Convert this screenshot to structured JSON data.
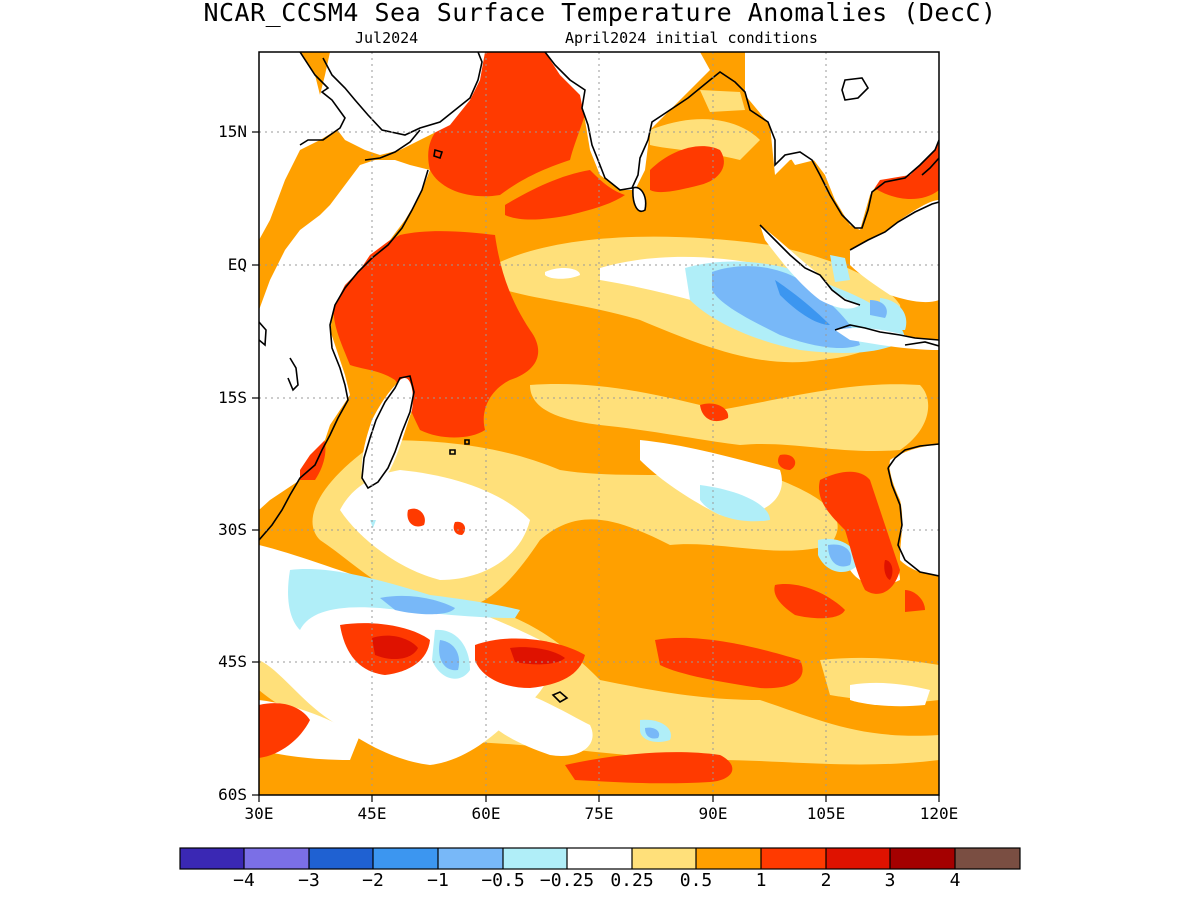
{
  "title": "NCAR_CCSM4 Sea Surface Temperature Anomalies (DecC)",
  "subtitle_left": "Jul2024",
  "subtitle_right": "April2024 initial conditions",
  "map": {
    "region": "Indian Ocean",
    "projection": "lat-lon",
    "lon_range_deg": [
      30,
      120
    ],
    "lat_range_deg": [
      -60,
      24
    ],
    "grid": true,
    "lat_labels": [
      "15N",
      "EQ",
      "15S",
      "30S",
      "45S",
      "60S"
    ],
    "lon_labels": [
      "30E",
      "45E",
      "60E",
      "75E",
      "90E",
      "105E",
      "120E"
    ]
  },
  "colorbar": {
    "unit": "DecC",
    "boundaries": [
      "-4",
      "-3",
      "-2",
      "-1",
      "-0.5",
      "-0.25",
      "0.25",
      "0.5",
      "1",
      "2",
      "3",
      "4"
    ],
    "colors": [
      "#3a28b4",
      "#7b6fe6",
      "#1f61d2",
      "#3c96f0",
      "#78b8f8",
      "#b0eef8",
      "#ffffff",
      "#ffe07a",
      "#ffa000",
      "#ff3a00",
      "#df1200",
      "#a40000",
      "#7a4e42"
    ]
  },
  "legend_fields": {
    "strong_warm_core": "#df1200",
    "warm": "#ff3a00",
    "moderate_warm": "#ffa000",
    "weak_warm": "#ffe07a",
    "neutral": "#ffffff",
    "weak_cool": "#b0eef8",
    "cool": "#78b8f8",
    "cooler": "#3c96f0",
    "land": "#ffffff",
    "coastline": "#000000"
  }
}
